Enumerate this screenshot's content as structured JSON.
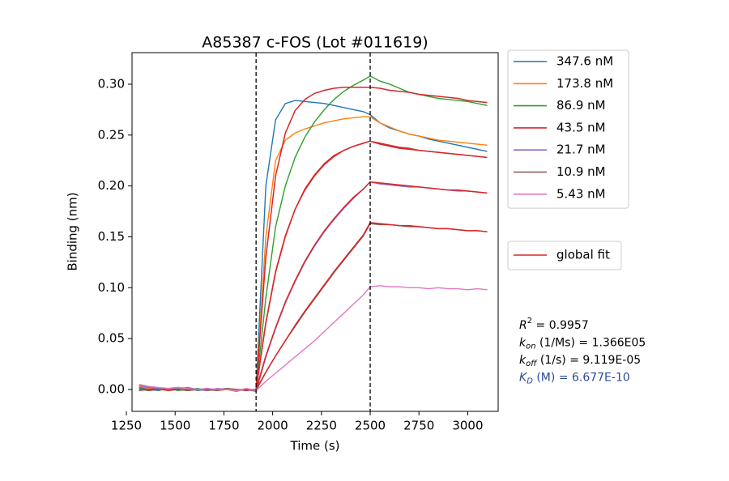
{
  "chart_data": {
    "type": "line",
    "title": "A85387 c-FOS (Lot #011619)",
    "x_label": "Time (s)",
    "y_label": "Binding (nm)",
    "xlim": [
      1279,
      3156
    ],
    "ylim": [
      -0.0215,
      0.331
    ],
    "xticks": [
      1250,
      1500,
      1750,
      2000,
      2250,
      2500,
      2750,
      3000
    ],
    "yticks": [
      {
        "value": 0,
        "label": "0.00"
      },
      {
        "value": 0.05,
        "label": "0.05"
      },
      {
        "value": 0.1,
        "label": "0.10"
      },
      {
        "value": 0.15,
        "label": "0.15"
      },
      {
        "value": 0.2,
        "label": "0.20"
      },
      {
        "value": 0.25,
        "label": "0.25"
      },
      {
        "value": 0.3,
        "label": "0.30"
      }
    ],
    "vlines": [
      1915,
      2500
    ],
    "x": [
      1315,
      1365,
      1415,
      1465,
      1515,
      1565,
      1615,
      1665,
      1715,
      1765,
      1815,
      1865,
      1915,
      1965,
      2015,
      2065,
      2115,
      2165,
      2215,
      2265,
      2315,
      2365,
      2415,
      2465,
      2500,
      2550,
      2600,
      2650,
      2700,
      2750,
      2800,
      2850,
      2900,
      2950,
      3000,
      3050,
      3100
    ],
    "series": [
      {
        "name": "347.6 nM",
        "color": "#1f77b4",
        "values": [
          0.002,
          0.0,
          -0.001,
          0.001,
          0.002,
          0.001,
          -0.001,
          0.0,
          -0.001,
          0.001,
          -0.001,
          0.0,
          0.0,
          0.2,
          0.265,
          0.281,
          0.284,
          0.283,
          0.282,
          0.281,
          0.279,
          0.277,
          0.275,
          0.273,
          0.27,
          0.262,
          0.257,
          0.254,
          0.251,
          0.249,
          0.246,
          0.244,
          0.242,
          0.24,
          0.238,
          0.236,
          0.234
        ]
      },
      {
        "name": "173.8 nM",
        "color": "#ff7f0e",
        "values": [
          0.003,
          0.001,
          0.0,
          -0.001,
          0.0,
          0.001,
          0.0,
          -0.001,
          0.0,
          0.0,
          -0.002,
          0.001,
          -0.001,
          0.15,
          0.225,
          0.245,
          0.252,
          0.256,
          0.259,
          0.262,
          0.264,
          0.266,
          0.267,
          0.268,
          0.268,
          0.262,
          0.258,
          0.254,
          0.251,
          0.249,
          0.247,
          0.245,
          0.244,
          0.243,
          0.242,
          0.241,
          0.24
        ]
      },
      {
        "name": "86.9 nM",
        "color": "#2ca02c",
        "values": [
          0.001,
          -0.001,
          0.0,
          0.001,
          -0.001,
          0.0,
          0.001,
          -0.001,
          0.0,
          0.001,
          0.0,
          -0.001,
          0.0,
          0.09,
          0.16,
          0.2,
          0.228,
          0.248,
          0.263,
          0.275,
          0.285,
          0.293,
          0.299,
          0.304,
          0.308,
          0.303,
          0.3,
          0.296,
          0.292,
          0.29,
          0.288,
          0.286,
          0.285,
          0.284,
          0.283,
          0.281,
          0.279
        ]
      },
      {
        "name": "43.5 nM",
        "color": "#d62728",
        "values": [
          -0.001,
          0.0,
          0.001,
          -0.001,
          0.0,
          -0.001,
          0.0,
          0.001,
          -0.001,
          0.0,
          0.0,
          -0.001,
          0.0,
          0.065,
          0.115,
          0.15,
          0.177,
          0.197,
          0.211,
          0.222,
          0.23,
          0.235,
          0.239,
          0.242,
          0.244,
          0.241,
          0.239,
          0.237,
          0.236,
          0.235,
          0.234,
          0.233,
          0.232,
          0.231,
          0.23,
          0.229,
          0.228
        ]
      },
      {
        "name": "21.7 nM",
        "color": "#9467bd",
        "values": [
          0.004,
          0.002,
          0.001,
          0.0,
          0.001,
          0.002,
          0.0,
          -0.001,
          0.001,
          0.0,
          -0.001,
          0.0,
          -0.002,
          0.032,
          0.06,
          0.085,
          0.106,
          0.125,
          0.141,
          0.155,
          0.167,
          0.178,
          0.188,
          0.197,
          0.204,
          0.202,
          0.201,
          0.2,
          0.199,
          0.199,
          0.198,
          0.197,
          0.196,
          0.195,
          0.195,
          0.194,
          0.193
        ]
      },
      {
        "name": "10.9 nM",
        "color": "#8c564b",
        "values": [
          0.0,
          -0.001,
          0.0,
          0.001,
          0.0,
          -0.001,
          0.0,
          0.0,
          -0.001,
          0.001,
          0.0,
          0.0,
          -0.001,
          0.017,
          0.033,
          0.048,
          0.062,
          0.076,
          0.089,
          0.102,
          0.115,
          0.127,
          0.139,
          0.151,
          0.163,
          0.162,
          0.162,
          0.161,
          0.16,
          0.16,
          0.159,
          0.158,
          0.158,
          0.157,
          0.156,
          0.156,
          0.155
        ]
      },
      {
        "name": "5.43 nM",
        "color": "#e377c2",
        "values": [
          0.005,
          0.003,
          0.002,
          0.001,
          0.002,
          0.001,
          0.0,
          0.001,
          0.0,
          0.0,
          -0.001,
          0.001,
          -0.001,
          0.008,
          0.016,
          0.024,
          0.032,
          0.04,
          0.048,
          0.057,
          0.066,
          0.075,
          0.084,
          0.093,
          0.101,
          0.102,
          0.101,
          0.101,
          0.1,
          0.1,
          0.099,
          0.1,
          0.099,
          0.099,
          0.098,
          0.099,
          0.098
        ]
      }
    ],
    "fit": {
      "name": "global fit",
      "color": "#d62728",
      "curves": [
        [
          null,
          null,
          null,
          null,
          null,
          null,
          null,
          null,
          null,
          null,
          null,
          null,
          0,
          0.13,
          0.21,
          0.252,
          0.274,
          0.285,
          0.291,
          0.294,
          0.296,
          0.297,
          0.297,
          0.297,
          0.297,
          0.296,
          0.294,
          0.293,
          0.292,
          0.29,
          0.289,
          0.288,
          0.287,
          0.286,
          0.284,
          0.283,
          0.282
        ],
        [
          null,
          null,
          null,
          null,
          null,
          null,
          null,
          null,
          null,
          null,
          null,
          null,
          0,
          0.066,
          0.116,
          0.151,
          0.177,
          0.196,
          0.21,
          0.221,
          0.229,
          0.235,
          0.239,
          0.242,
          0.244,
          0.242,
          0.24,
          0.238,
          0.237,
          0.235,
          0.234,
          0.233,
          0.232,
          0.231,
          0.23,
          0.229,
          0.228
        ],
        [
          null,
          null,
          null,
          null,
          null,
          null,
          null,
          null,
          null,
          null,
          null,
          null,
          0,
          0.033,
          0.061,
          0.086,
          0.107,
          0.126,
          0.142,
          0.156,
          0.168,
          0.179,
          0.189,
          0.197,
          0.204,
          0.203,
          0.202,
          0.201,
          0.2,
          0.199,
          0.198,
          0.197,
          0.196,
          0.196,
          0.195,
          0.194,
          0.193
        ],
        [
          null,
          null,
          null,
          null,
          null,
          null,
          null,
          null,
          null,
          null,
          null,
          null,
          0,
          0.017,
          0.033,
          0.048,
          0.063,
          0.077,
          0.09,
          0.103,
          0.116,
          0.128,
          0.14,
          0.152,
          0.164,
          0.163,
          0.162,
          0.161,
          0.161,
          0.16,
          0.159,
          0.158,
          0.158,
          0.157,
          0.156,
          0.156,
          0.155
        ]
      ]
    },
    "annotations": [
      {
        "symbol": "R",
        "superscript": "2",
        "text": " = 0.9957",
        "color": "#000000"
      },
      {
        "symbol": "k",
        "subscript": "on",
        "text": " (1/Ms) = 1.366E05",
        "color": "#000000"
      },
      {
        "symbol": "k",
        "subscript": "off",
        "text": " (1/s) = 9.119E-05",
        "color": "#000000"
      },
      {
        "symbol": "K",
        "subscript": "D",
        "text": " (M) = 6.677E-10",
        "color": "#2b4a9a"
      }
    ]
  }
}
